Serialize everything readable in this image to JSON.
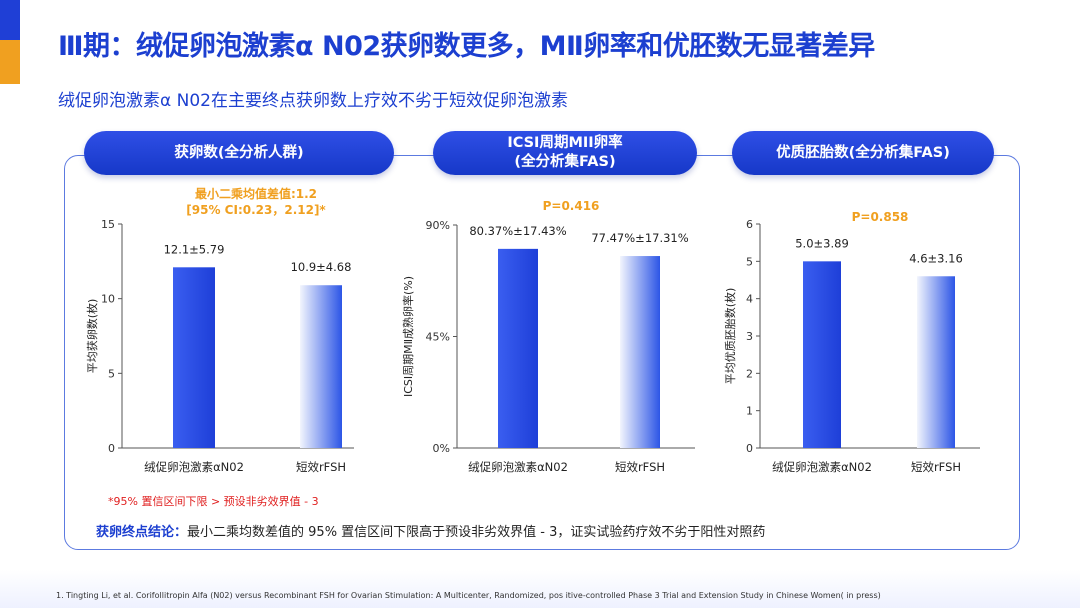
{
  "title": "Ⅲ期：绒促卵泡激素α N02获卵数更多，MⅡ卵率和优胚数无显著差异",
  "subtitle": "绒促卵泡激素α N02在主要终点获卵数上疗效不劣于短效促卵泡激素",
  "colors": {
    "accent_blue": "#1c3fd0",
    "bar_dark": "#1e3fd8",
    "bar_light": "#dfe6fa",
    "annotation_orange": "#f0a020"
  },
  "chart_data": [
    {
      "type": "bar",
      "title": "获卵数(全分析人群)",
      "categories": [
        "绒促卵泡激素αN02",
        "短效rFSH"
      ],
      "values": [
        12.1,
        10.9
      ],
      "data_labels": [
        "12.1±5.79",
        "10.9±4.68"
      ],
      "ylabel": "平均获卵数(枚)",
      "ylim": [
        0,
        15
      ],
      "yticks": [
        "0",
        "5",
        "10",
        "15"
      ],
      "annotation": [
        "最小二乘均值差值:1.2",
        "[95% CI:0.23，2.12]*"
      ],
      "grid": false
    },
    {
      "type": "bar",
      "title": [
        "ICSI周期MII卵率",
        "(全分析集FAS)"
      ],
      "categories": [
        "绒促卵泡激素αN02",
        "短效rFSH"
      ],
      "values": [
        80.37,
        77.47
      ],
      "data_labels": [
        "80.37%±17.43%",
        "77.47%±17.31%"
      ],
      "ylabel": "ICSI周期MⅡ成熟卵率(%)",
      "ylim": [
        0,
        90
      ],
      "yticks": [
        "0%",
        "45%",
        "90%"
      ],
      "annotation": [
        "P=0.416"
      ],
      "grid": false
    },
    {
      "type": "bar",
      "title": "优质胚胎数(全分析集FAS)",
      "categories": [
        "绒促卵泡激素αN02",
        "短效rFSH"
      ],
      "values": [
        5.0,
        4.6
      ],
      "data_labels": [
        "5.0±3.89",
        "4.6±3.16"
      ],
      "ylabel": "平均优质胚胎数(枚)",
      "ylim": [
        0,
        6
      ],
      "yticks": [
        "0",
        "1",
        "2",
        "3",
        "4",
        "5",
        "6"
      ],
      "annotation": [
        "P=0.858"
      ],
      "grid": false
    }
  ],
  "footnote": "*95% 置信区间下限 > 预设非劣效界值 - 3",
  "conclusion": {
    "lead": "获卵终点结论：",
    "text": "最小二乘均数差值的 95% 置信区间下限高于预设非劣效界值 - 3，证实试验药疗效不劣于阳性对照药"
  },
  "reference": "1.      Tingting Li, et al. Corifollitropin Alfa (N02) versus Recombinant FSH for Ovarian Stimulation: A Multicenter, Randomized, pos itive-controlled Phase 3 Trial and Extension Study in Chinese Women( in press)"
}
